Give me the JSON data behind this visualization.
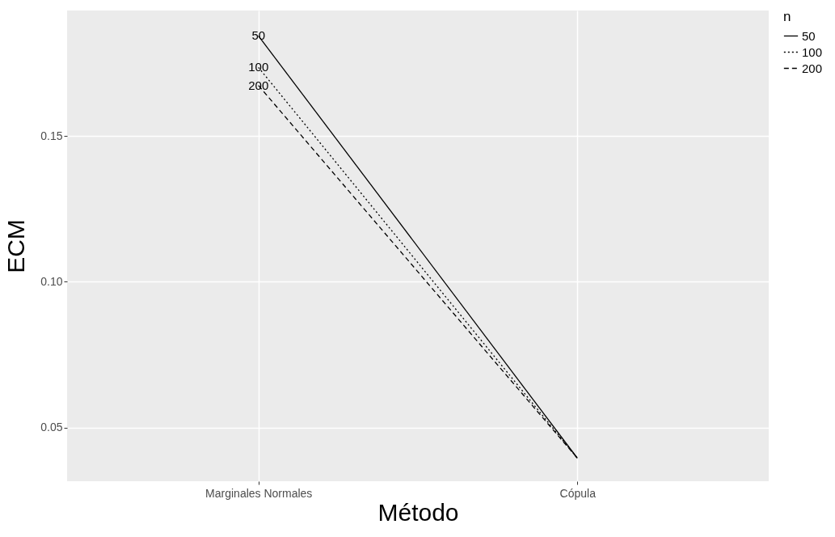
{
  "chart_data": {
    "type": "line",
    "xlabel": "Método",
    "ylabel": "ECM",
    "legend_title": "n",
    "categories": [
      "Marginales Normales",
      "Cópula"
    ],
    "series": [
      {
        "name": "50",
        "color": "#000000",
        "line_style": "solid",
        "values": [
          0.1843,
          0.0395
        ]
      },
      {
        "name": "100",
        "color": "#000000",
        "line_style": "dotted",
        "values": [
          0.1735,
          0.0395
        ]
      },
      {
        "name": "200",
        "color": "#000000",
        "line_style": "dashed",
        "values": [
          0.1673,
          0.0395
        ]
      }
    ],
    "ylim": [
      0.0316,
      0.193
    ],
    "yticks": [
      {
        "value": 0.05,
        "label": "0.05"
      },
      {
        "value": 0.1,
        "label": "0.10"
      },
      {
        "value": 0.15,
        "label": "0.15"
      }
    ],
    "grid": true,
    "legend": "right",
    "marker": "none"
  }
}
